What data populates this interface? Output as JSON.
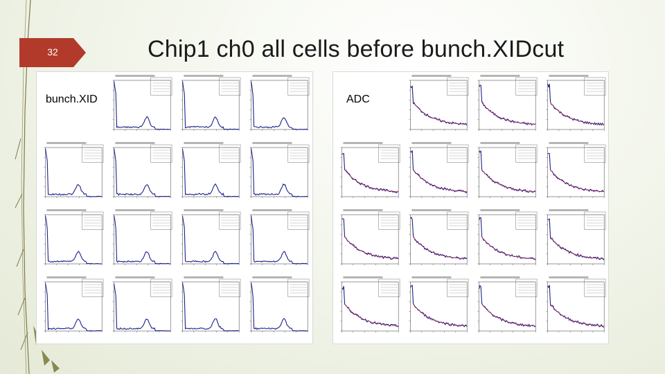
{
  "slide": {
    "number": "32",
    "title": "Chip1 ch0 all cells before bunch.XIDcut"
  },
  "left_panel": {
    "label": "bunch.XID",
    "plot_style": "bunchxid",
    "line_color": "#1a1f8a"
  },
  "right_panel": {
    "label": "ADC",
    "plot_style": "adc",
    "line_color": "#1a1f8a",
    "fit_color": "#c0304a"
  },
  "theme": {
    "accent_red": "#b23a2a",
    "deco_olive": "#6b6a3a"
  }
}
